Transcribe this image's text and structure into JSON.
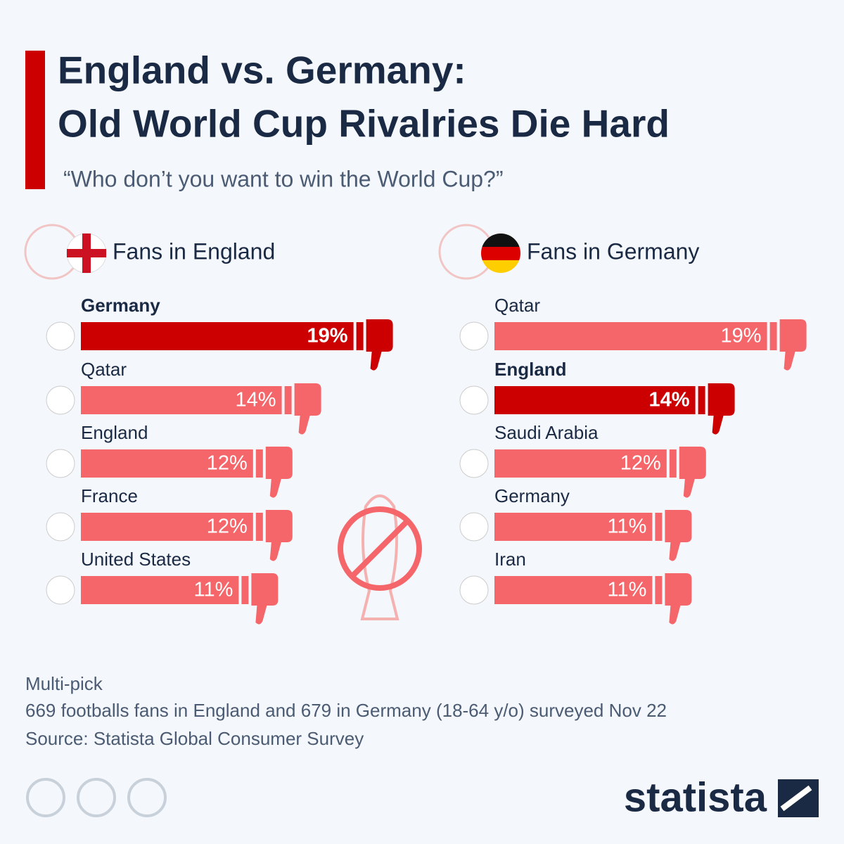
{
  "header": {
    "title": [
      "England vs. Germany:",
      "Old World Cup Rivalries Die Hard"
    ],
    "subtitle": "“Who don’t you want to win the World Cup?”"
  },
  "chart_data": [
    {
      "type": "bar",
      "title": "Fans in England",
      "categories": [
        "Germany",
        "Qatar",
        "England",
        "France",
        "United States"
      ],
      "values": [
        19,
        14,
        12,
        12,
        11
      ],
      "value_labels": [
        "19%",
        "14%",
        "12%",
        "12%",
        "11%"
      ],
      "colors": [
        "#cc0000",
        "#f4666a",
        "#f4666a",
        "#f4666a",
        "#f4666a"
      ],
      "highlight_color": "#cc0000"
    },
    {
      "type": "bar",
      "title": "Fans in Germany",
      "categories": [
        "Qatar",
        "England",
        "Saudi Arabia",
        "Germany",
        "Iran"
      ],
      "values": [
        19,
        14,
        12,
        11,
        11
      ],
      "value_labels": [
        "19%",
        "14%",
        "12%",
        "11%",
        "11%"
      ],
      "colors": [
        "#f4666a",
        "#cc0000",
        "#f4666a",
        "#f4666a",
        "#f4666a"
      ],
      "highlight_color": "#cc0000"
    }
  ],
  "footer": {
    "notes": [
      "Multi-pick",
      "669 footballs fans in England and 679 in Germany (18-64 y/o) surveyed Nov 22",
      "Source: Statista Global Consumer Survey"
    ],
    "brand": "statista"
  }
}
